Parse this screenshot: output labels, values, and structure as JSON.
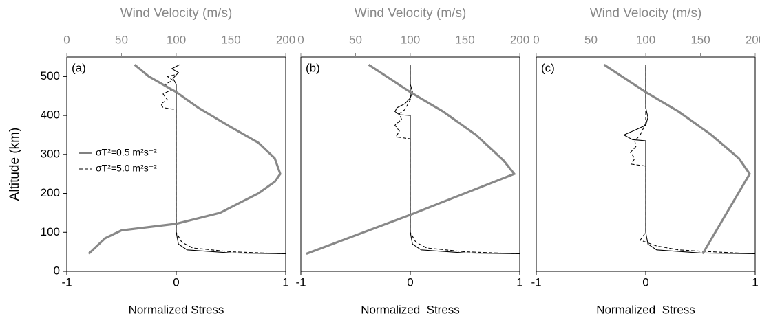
{
  "chart_data": [
    {
      "type": "line",
      "panel_label": "(a)",
      "xlabel": "Normalized Stress",
      "x2label": "Wind Velocity (m/s)",
      "ylabel": "Altitude (km)",
      "xlim": [
        -1,
        1
      ],
      "xticks": [
        -1,
        0,
        1
      ],
      "x2lim": [
        0,
        200
      ],
      "x2ticks": [
        0,
        50,
        100,
        150,
        200
      ],
      "ylim": [
        0,
        550
      ],
      "yticks": [
        0,
        100,
        200,
        300,
        400,
        500
      ],
      "legend": "left",
      "series": [
        {
          "name": "σT²=0.5 m²s⁻²",
          "color": "#000000",
          "dash": false,
          "x": [
            1,
            0.5,
            0.1,
            0.02,
            0,
            0,
            -0.03,
            0.02,
            -0.04,
            0.03
          ],
          "values": [
            45,
            47,
            55,
            70,
            100,
            480,
            495,
            510,
            520,
            530
          ]
        },
        {
          "name": "σT²=5.0 m²s⁻²",
          "color": "#000000",
          "dash": true,
          "x": [
            1,
            0.5,
            0.15,
            0.05,
            0,
            0,
            -0.12,
            -0.14,
            -0.08,
            -0.12,
            -0.05,
            -0.1,
            -0.03,
            -0.08,
            0
          ],
          "values": [
            45,
            50,
            60,
            75,
            100,
            415,
            420,
            430,
            440,
            455,
            465,
            480,
            490,
            500,
            505
          ]
        },
        {
          "color": "#888888",
          "axis": "x2",
          "dash": false,
          "x": [
            20,
            35,
            50,
            100,
            140,
            175,
            190,
            195,
            190,
            175,
            150,
            120,
            100,
            75,
            62
          ],
          "values": [
            45,
            85,
            105,
            122,
            150,
            200,
            230,
            250,
            290,
            330,
            370,
            420,
            460,
            500,
            530
          ]
        }
      ]
    },
    {
      "type": "line",
      "panel_label": "(b)",
      "xlabel": "Normalized  Stress",
      "x2label": "Wind Velocity (m/s)",
      "xlim": [
        -1,
        1
      ],
      "xticks": [
        -1,
        0,
        1
      ],
      "x2lim": [
        0,
        200
      ],
      "x2ticks": [
        0,
        50,
        100,
        150,
        200
      ],
      "ylim": [
        0,
        550
      ],
      "series": [
        {
          "color": "#000000",
          "dash": false,
          "x": [
            1,
            0.5,
            0.1,
            0.02,
            0,
            0,
            -0.1,
            -0.14,
            -0.12,
            -0.05,
            0,
            0.02,
            0,
            0
          ],
          "values": [
            45,
            47,
            55,
            70,
            100,
            400,
            402,
            410,
            420,
            430,
            445,
            460,
            480,
            530
          ]
        },
        {
          "color": "#000000",
          "dash": true,
          "x": [
            1,
            0.5,
            0.15,
            0.05,
            0,
            0,
            -0.13,
            -0.1,
            -0.14,
            -0.08,
            -0.1,
            -0.05,
            0,
            0
          ],
          "values": [
            45,
            50,
            60,
            75,
            100,
            340,
            345,
            360,
            375,
            390,
            405,
            415,
            440,
            530
          ]
        },
        {
          "color": "#888888",
          "axis": "x2",
          "dash": false,
          "x": [
            5,
            100,
            195,
            185,
            160,
            130,
            100,
            62
          ],
          "values": [
            45,
            145,
            250,
            285,
            350,
            410,
            460,
            530
          ]
        }
      ]
    },
    {
      "type": "line",
      "panel_label": "(c)",
      "xlabel": "Normalized  Stress",
      "x2label": "Wind Velocity (m/s)",
      "xlim": [
        -1,
        1
      ],
      "xticks": [
        -1,
        0,
        1
      ],
      "x2lim": [
        0,
        200
      ],
      "x2ticks": [
        0,
        50,
        100,
        150,
        200
      ],
      "ylim": [
        0,
        550
      ],
      "series": [
        {
          "color": "#000000",
          "dash": false,
          "x": [
            1,
            0.5,
            0.1,
            0.02,
            0,
            0,
            -0.12,
            -0.2,
            -0.1,
            0,
            0.02,
            0,
            0
          ],
          "values": [
            45,
            47,
            55,
            70,
            100,
            335,
            338,
            350,
            362,
            375,
            395,
            420,
            530
          ]
        },
        {
          "color": "#000000",
          "dash": true,
          "x": [
            1,
            0.6,
            0.3,
            0.1,
            -0.05,
            0,
            0,
            -0.13,
            -0.1,
            -0.14,
            -0.09,
            -0.1,
            -0.05,
            0,
            0
          ],
          "values": [
            45,
            50,
            55,
            65,
            80,
            100,
            270,
            275,
            290,
            305,
            320,
            335,
            350,
            380,
            530
          ]
        },
        {
          "color": "#888888",
          "axis": "x2",
          "dash": false,
          "x": [
            152,
            195,
            185,
            160,
            130,
            100,
            62
          ],
          "values": [
            45,
            250,
            290,
            350,
            410,
            460,
            530
          ]
        }
      ]
    }
  ]
}
